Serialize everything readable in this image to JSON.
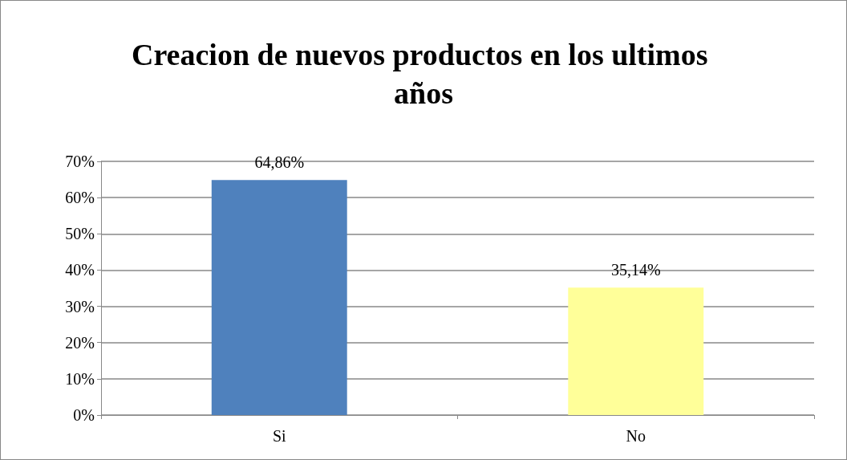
{
  "chart_data": {
    "type": "bar",
    "title": "Creacion de nuevos productos en los ultimos años",
    "categories": [
      "Si",
      "No"
    ],
    "values": [
      64.86,
      35.14
    ],
    "colors": [
      "#4f81bd",
      "#ffff99"
    ],
    "value_labels": [
      "64,86%",
      "35,14%"
    ],
    "ylim": [
      0,
      70
    ],
    "yticks": [
      {
        "value": 0,
        "label": "0%"
      },
      {
        "value": 10,
        "label": "10%"
      },
      {
        "value": 20,
        "label": "20%"
      },
      {
        "value": 30,
        "label": "30%"
      },
      {
        "value": 40,
        "label": "40%"
      },
      {
        "value": 50,
        "label": "50%"
      },
      {
        "value": 60,
        "label": "60%"
      },
      {
        "value": 70,
        "label": "70%"
      }
    ],
    "grid": true
  }
}
